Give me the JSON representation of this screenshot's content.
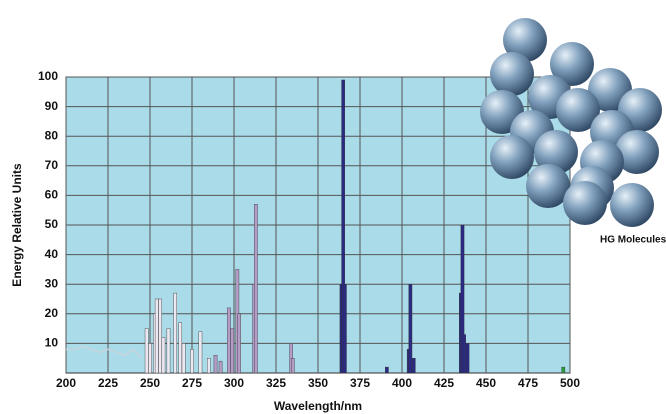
{
  "chart_data": {
    "type": "spectrum",
    "xlabel": "Wavelength/nm",
    "ylabel": "Energy Relative Units",
    "annotation": "HG Molecules",
    "xlim": [
      200,
      500
    ],
    "xticks": [
      200,
      225,
      250,
      275,
      300,
      325,
      350,
      375,
      400,
      425,
      450,
      475,
      500
    ],
    "ylim": [
      0,
      100
    ],
    "yticks": [
      10,
      20,
      30,
      40,
      50,
      60,
      70,
      80,
      90,
      100
    ],
    "grid": true,
    "background": "#a9dbe9",
    "series": [
      {
        "style": "step",
        "color": "#c8d4dc",
        "x": [
          200,
          205,
          210,
          215,
          220,
          225,
          230,
          235,
          240,
          245
        ],
        "values": [
          8,
          8,
          9,
          8,
          7,
          8,
          7,
          6,
          8,
          5
        ]
      },
      {
        "style": "spike",
        "color": "#ece8f2",
        "x": [
          248,
          250,
          253,
          254,
          256,
          258,
          261,
          265,
          268,
          270,
          275,
          280,
          285
        ],
        "values": [
          15,
          10,
          20,
          25,
          25,
          12,
          15,
          27,
          17,
          10,
          8,
          14,
          5
        ]
      },
      {
        "style": "spike",
        "color": "#b49cc6",
        "x": [
          289,
          292,
          297,
          299,
          302,
          303,
          312,
          313,
          334,
          335
        ],
        "values": [
          6,
          4,
          22,
          15,
          35,
          20,
          30,
          57,
          10,
          5
        ]
      },
      {
        "style": "spike",
        "color": "#2b2a82",
        "x": [
          364,
          365,
          366,
          391,
          404,
          405,
          407,
          435,
          436,
          437,
          439
        ],
        "values": [
          30,
          99,
          30,
          2,
          8,
          30,
          5,
          27,
          50,
          13,
          10
        ]
      },
      {
        "style": "spike",
        "color": "#2a9a3a",
        "x": [
          496
        ],
        "values": [
          2
        ]
      }
    ]
  }
}
